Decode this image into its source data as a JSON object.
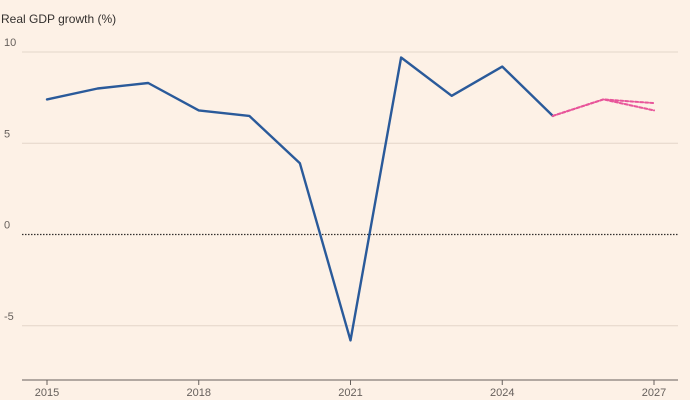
{
  "chart_data": {
    "type": "line",
    "ylabel": "Real GDP growth (%)",
    "xlabel": "",
    "title": "",
    "ylim": [
      -8,
      11
    ],
    "xlim": [
      2015,
      2027
    ],
    "y_ticks": [
      10,
      5,
      0,
      -5
    ],
    "y_tick_labels": [
      "10",
      "5",
      "0",
      "-5"
    ],
    "x_ticks": [
      2015,
      2018,
      2021,
      2024,
      2027
    ],
    "x_tick_labels": [
      "2015",
      "2018",
      "2021",
      "2024",
      "2027"
    ],
    "grid": true,
    "zero_line": "dotted",
    "series": [
      {
        "color": "#2a5a9a",
        "style": "solid",
        "x": [
          2015,
          2016,
          2017,
          2018,
          2019,
          2020,
          2021,
          2022,
          2023,
          2024,
          2025
        ],
        "y": [
          7.4,
          8.0,
          8.3,
          6.8,
          6.5,
          3.9,
          -5.8,
          9.7,
          7.6,
          9.2,
          6.5
        ]
      },
      {
        "color": "#e8559a",
        "style": "dashed",
        "x": [
          2025,
          2026,
          2027
        ],
        "y": [
          6.5,
          7.4,
          7.2
        ]
      },
      {
        "color": "#e8559a",
        "style": "dashed",
        "x": [
          2025,
          2026,
          2027
        ],
        "y": [
          6.5,
          7.4,
          6.8
        ]
      }
    ]
  }
}
